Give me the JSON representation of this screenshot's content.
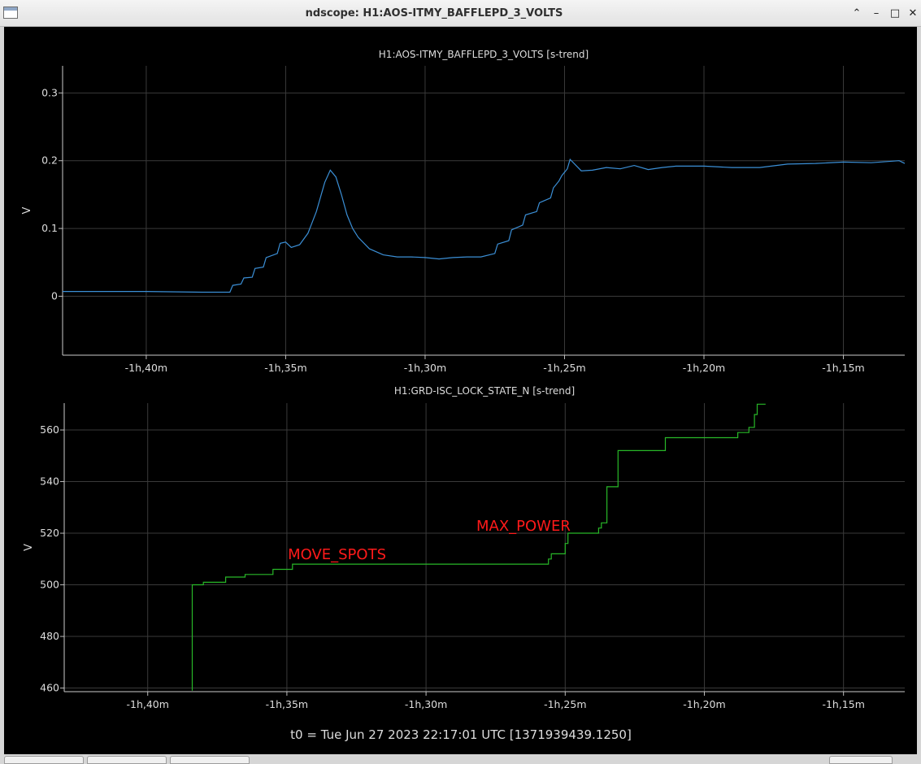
{
  "window": {
    "title": "ndscope: H1:AOS-ITMY_BAFFLEPD_3_VOLTS",
    "controls": [
      "chevron-up-icon",
      "minimize-icon",
      "maximize-icon",
      "close-icon"
    ]
  },
  "colors": {
    "background": "#000000",
    "trace_top": "#3b8fd6",
    "trace_bottom": "#28b828",
    "label": "#ff1a1a",
    "grid": "#3a3a3a",
    "text": "#dddddd"
  },
  "chart_data": [
    {
      "type": "line",
      "title": "H1:AOS-ITMY_BAFFLEPD_3_VOLTS [s-trend]",
      "ylabel": "V",
      "xlabel": "",
      "xlim": [
        -103,
        -72.8
      ],
      "ylim": [
        -0.087,
        0.34
      ],
      "grid": true,
      "x_ticks": [
        {
          "v": -100,
          "label": "-1h,40m"
        },
        {
          "v": -95,
          "label": "-1h,35m"
        },
        {
          "v": -90,
          "label": "-1h,30m"
        },
        {
          "v": -85,
          "label": "-1h,25m"
        },
        {
          "v": -80,
          "label": "-1h,20m"
        },
        {
          "v": -75,
          "label": "-1h,15m"
        }
      ],
      "y_ticks": [
        {
          "v": 0,
          "label": "0"
        },
        {
          "v": 0.1,
          "label": "0.1"
        },
        {
          "v": 0.2,
          "label": "0.2"
        },
        {
          "v": 0.3,
          "label": "0.3"
        }
      ],
      "series": [
        {
          "x": [
            -103,
            -100,
            -98,
            -97,
            -96.9,
            -96.6,
            -96.5,
            -96.2,
            -96.1,
            -95.8,
            -95.7,
            -95.3,
            -95.2,
            -95.0,
            -94.8,
            -94.5,
            -94.2,
            -93.9,
            -93.6,
            -93.4,
            -93.2,
            -93.0,
            -92.8,
            -92.6,
            -92.4,
            -92.0,
            -91.5,
            -91.0,
            -90.5,
            -90.0,
            -89.5,
            -89.0,
            -88.5,
            -88.0,
            -87.5,
            -87.4,
            -87.0,
            -86.9,
            -86.5,
            -86.4,
            -86.0,
            -85.9,
            -85.5,
            -85.4,
            -85.2,
            -85.1,
            -84.9,
            -84.8,
            -84.4,
            -84.0,
            -83.5,
            -83.0,
            -82.5,
            -82.0,
            -81.5,
            -81.0,
            -80.0,
            -79.0,
            -78.0,
            -77.0,
            -76.0,
            -75.0,
            -74.0,
            -73.0,
            -72.8
          ],
          "y": [
            0.007,
            0.007,
            0.006,
            0.006,
            0.016,
            0.018,
            0.027,
            0.028,
            0.041,
            0.043,
            0.057,
            0.063,
            0.078,
            0.08,
            0.072,
            0.076,
            0.093,
            0.125,
            0.168,
            0.186,
            0.176,
            0.15,
            0.12,
            0.1,
            0.087,
            0.07,
            0.061,
            0.058,
            0.058,
            0.057,
            0.055,
            0.057,
            0.058,
            0.058,
            0.063,
            0.077,
            0.082,
            0.098,
            0.105,
            0.12,
            0.125,
            0.138,
            0.145,
            0.16,
            0.17,
            0.178,
            0.188,
            0.202,
            0.185,
            0.186,
            0.19,
            0.188,
            0.193,
            0.187,
            0.19,
            0.192,
            0.192,
            0.19,
            0.19,
            0.195,
            0.196,
            0.198,
            0.197,
            0.2,
            0.196
          ]
        }
      ]
    },
    {
      "type": "line",
      "title": "H1:GRD-ISC_LOCK_STATE_N [s-trend]",
      "ylabel": "V",
      "xlabel": "",
      "xlim": [
        -103,
        -72.8
      ],
      "ylim": [
        458.6,
        570.4
      ],
      "grid": true,
      "x_ticks": [
        {
          "v": -100,
          "label": "-1h,40m"
        },
        {
          "v": -95,
          "label": "-1h,35m"
        },
        {
          "v": -90,
          "label": "-1h,30m"
        },
        {
          "v": -85,
          "label": "-1h,25m"
        },
        {
          "v": -80,
          "label": "-1h,20m"
        },
        {
          "v": -75,
          "label": "-1h,15m"
        }
      ],
      "y_ticks": [
        {
          "v": 460,
          "label": "460"
        },
        {
          "v": 480,
          "label": "480"
        },
        {
          "v": 500,
          "label": "500"
        },
        {
          "v": 520,
          "label": "520"
        },
        {
          "v": 540,
          "label": "540"
        },
        {
          "v": 560,
          "label": "560"
        }
      ],
      "series": [
        {
          "x": [
            -98.4,
            -98.4,
            -98.0,
            -98.0,
            -97.2,
            -97.2,
            -96.5,
            -96.5,
            -95.5,
            -95.5,
            -94.8,
            -94.8,
            -85.6,
            -85.6,
            -85.5,
            -85.5,
            -85.0,
            -85.0,
            -84.9,
            -84.9,
            -83.8,
            -83.8,
            -83.7,
            -83.7,
            -83.5,
            -83.5,
            -83.1,
            -83.1,
            -83.0,
            -83.0,
            -81.4,
            -81.4,
            -80.8,
            -80.8,
            -78.8,
            -78.8,
            -78.4,
            -78.4,
            -78.2,
            -78.2,
            -78.1,
            -78.1,
            -77.8
          ],
          "y": [
            459,
            500,
            500,
            501,
            501,
            503,
            503,
            504,
            504,
            506,
            506,
            508,
            508,
            510,
            510,
            512,
            512,
            516,
            516,
            520,
            520,
            522,
            522,
            524,
            524,
            538,
            538,
            552,
            552,
            552,
            552,
            557,
            557,
            557,
            557,
            559,
            559,
            561,
            561,
            566,
            566,
            570,
            570
          ]
        }
      ],
      "annotations": [
        {
          "text": "MOVE_SPOTS",
          "x": -93.2,
          "y": 510
        },
        {
          "text": "MAX_POWER",
          "x": -86.5,
          "y": 521
        }
      ]
    }
  ],
  "footer": {
    "t0": "t0 = Tue Jun 27 2023 22:17:01 UTC [1371939439.1250]"
  }
}
